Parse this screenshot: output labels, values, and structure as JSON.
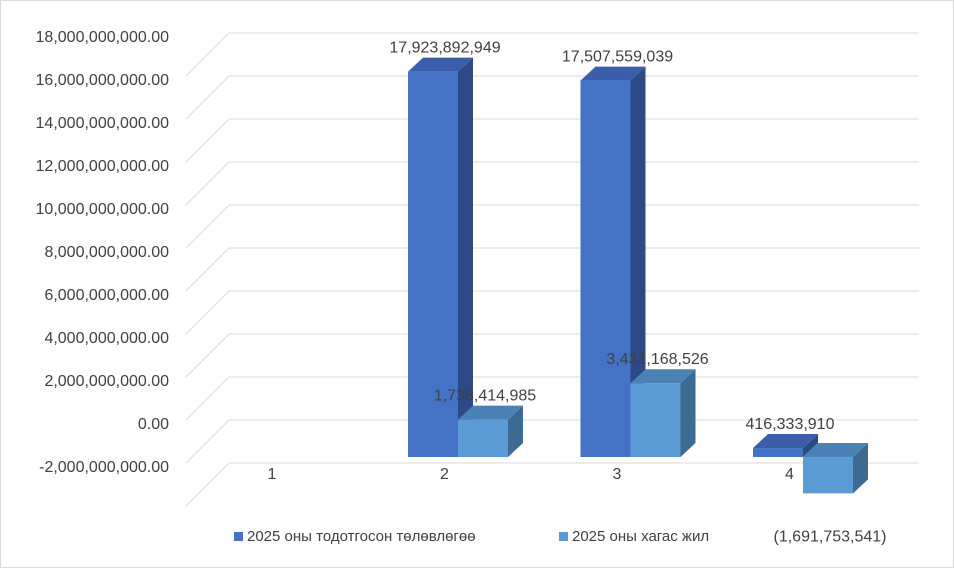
{
  "chart_data": {
    "type": "bar",
    "categories": [
      "1",
      "2",
      "3",
      "4"
    ],
    "series": [
      {
        "name": "2025 оны тодотгосон төлөвлөгөө",
        "values": [
          0,
          17923892949,
          17507559039,
          416333910
        ],
        "labels": [
          "",
          "17,923,892,949",
          "17,507,559,039",
          "416,333,910"
        ],
        "color": "#4472c4",
        "side_color": "#2e4a86",
        "top_color": "#3a5fa8"
      },
      {
        "name": "2025 оны хагас жил",
        "values": [
          0,
          1738414985,
          3431168526,
          -1691753541
        ],
        "labels": [
          "",
          "1,738,414,985",
          "3,431,168,526",
          "(1,691,753,541)"
        ],
        "color": "#5b9bd5",
        "side_color": "#3d6a93",
        "top_color": "#4a82b6"
      }
    ],
    "y_ticks": [
      "-2,000,000,000.00",
      "0.00",
      "2,000,000,000.00",
      "4,000,000,000.00",
      "6,000,000,000.00",
      "8,000,000,000.00",
      "10,000,000,000.00",
      "12,000,000,000.00",
      "14,000,000,000.00",
      "16,000,000,000.00",
      "18,000,000,000.00"
    ],
    "ylim": [
      -2000000000,
      18000000000
    ],
    "grid": true,
    "legend_position": "bottom"
  }
}
